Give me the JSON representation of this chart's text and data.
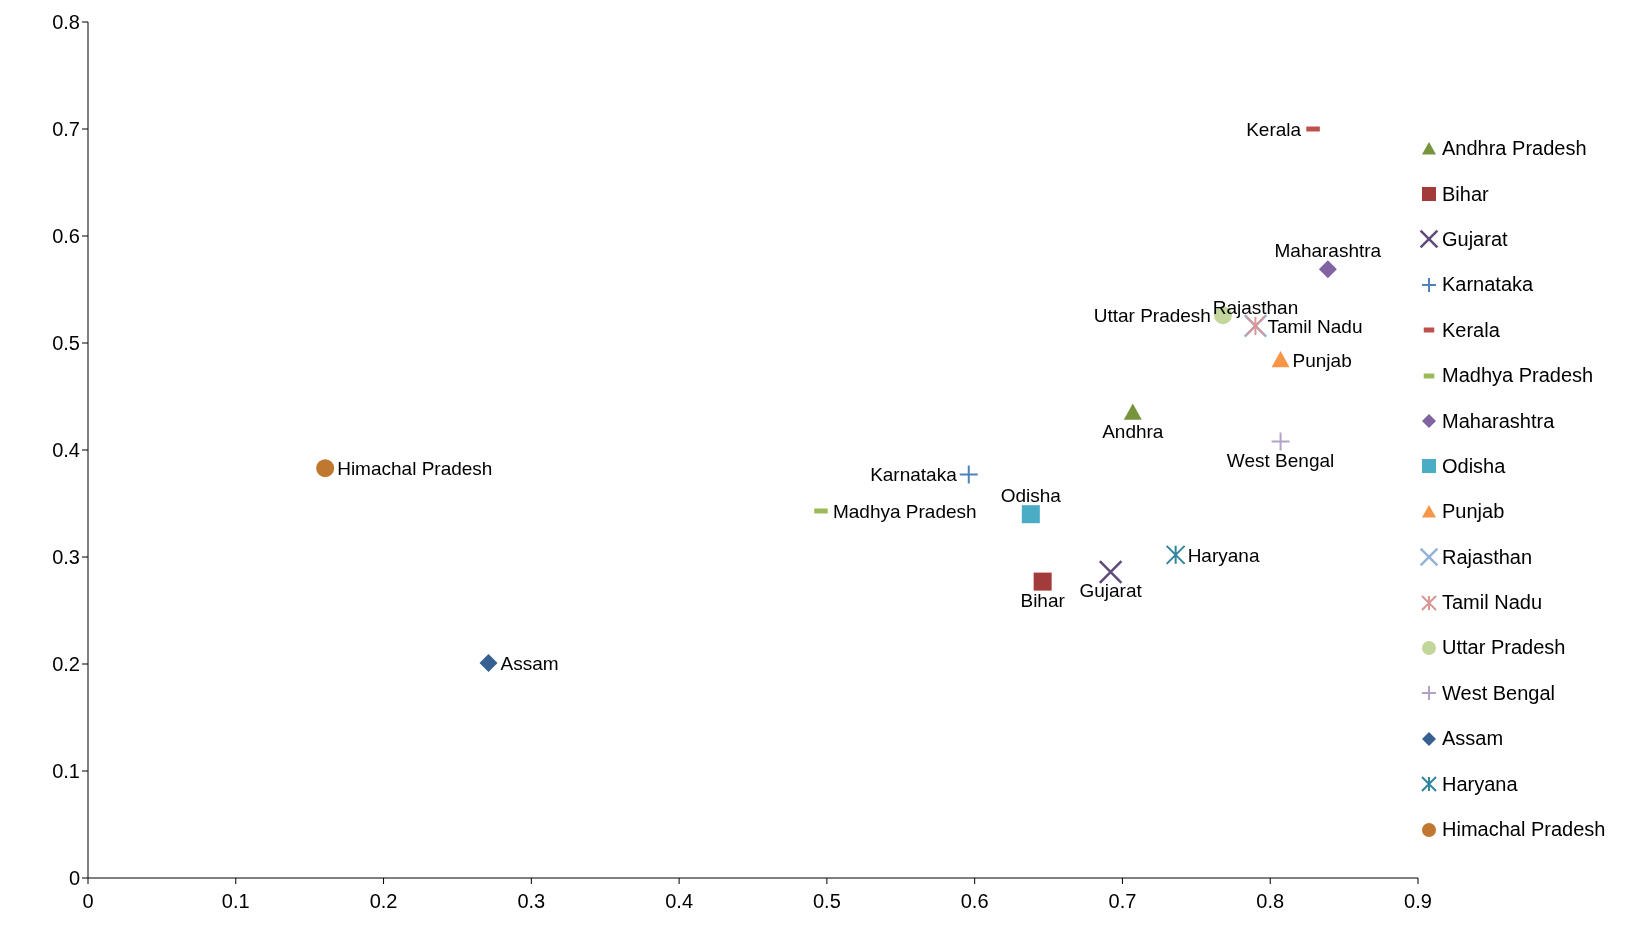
{
  "chart_data": {
    "type": "scatter",
    "xlim": [
      0,
      0.9
    ],
    "xticks": [
      0,
      0.1,
      0.2,
      0.3,
      0.4,
      0.5,
      0.6,
      0.7,
      0.8,
      0.9
    ],
    "ylim": [
      0,
      0.8
    ],
    "yticks": [
      0,
      0.1,
      0.2,
      0.3,
      0.4,
      0.5,
      0.6,
      0.7,
      0.8
    ],
    "grid": false,
    "legend": "right",
    "series": [
      {
        "name": "Andhra Pradesh",
        "color": "#77933c",
        "marker": "triangle",
        "x": [
          0.707
        ],
        "values": [
          0.435
        ]
      },
      {
        "name": "Bihar",
        "color": "#a33b3a",
        "marker": "square",
        "x": [
          0.646
        ],
        "values": [
          0.277
        ]
      },
      {
        "name": "Gujarat",
        "color": "#604a7b",
        "marker": "x",
        "x": [
          0.692
        ],
        "values": [
          0.286
        ]
      },
      {
        "name": "Karnataka",
        "color": "#4f81bd",
        "marker": "plus",
        "x": [
          0.596
        ],
        "values": [
          0.377
        ]
      },
      {
        "name": "Kerala",
        "color": "#c0504d",
        "x": [
          0.829
        ],
        "values": [
          0.7
        ]
      },
      {
        "name": "Madhya Pradesh",
        "color": "#9bbb59",
        "x": [
          0.496
        ],
        "values": [
          0.343
        ]
      },
      {
        "name": "Maharashtra",
        "color": "#8064a2",
        "marker": "diamond",
        "x": [
          0.839
        ],
        "values": [
          0.569
        ]
      },
      {
        "name": "Odisha",
        "color": "#4bacc6",
        "marker": "square",
        "x": [
          0.638
        ],
        "values": [
          0.34
        ]
      },
      {
        "name": "Punjab",
        "color": "#f79646",
        "marker": "triangle",
        "x": [
          0.807
        ],
        "values": [
          0.484
        ]
      },
      {
        "name": "Rajasthan",
        "color": "#95b3d7",
        "marker": "x",
        "x": [
          0.79
        ],
        "values": [
          0.516
        ]
      },
      {
        "name": "Tamil Nadu",
        "color": "#d99694",
        "marker": "cross",
        "x": [
          0.79
        ],
        "values": [
          0.516
        ]
      },
      {
        "name": "Uttar Pradesh",
        "color": "#c3d69b",
        "marker": "circle",
        "x": [
          0.768
        ],
        "values": [
          0.526
        ]
      },
      {
        "name": "West Bengal",
        "color": "#b3a2c7",
        "marker": "plus",
        "x": [
          0.807
        ],
        "values": [
          0.408
        ]
      },
      {
        "name": "Assam",
        "color": "#366092",
        "marker": "diamond",
        "x": [
          0.271
        ],
        "values": [
          0.201
        ]
      },
      {
        "name": "Haryana",
        "color": "#31859c",
        "marker": "cross",
        "x": [
          0.736
        ],
        "values": [
          0.302
        ]
      },
      {
        "name": "Himachal Pradesh",
        "color": "#c0772f",
        "marker": "circle",
        "x": [
          0.1605
        ],
        "values": [
          0.383
        ]
      }
    ],
    "annotations": [
      {
        "text": "Andhra",
        "x": 0.707,
        "y": 0.435
      },
      {
        "text": "Bihar",
        "x": 0.646,
        "y": 0.277
      },
      {
        "text": "Gujarat",
        "x": 0.692,
        "y": 0.286
      },
      {
        "text": "Karnataka",
        "x": 0.596,
        "y": 0.377
      },
      {
        "text": "Kerala",
        "x": 0.829,
        "y": 0.7
      },
      {
        "text": "Madhya Pradesh",
        "x": 0.496,
        "y": 0.343
      },
      {
        "text": "Maharashtra",
        "x": 0.839,
        "y": 0.569
      },
      {
        "text": "Odisha",
        "x": 0.638,
        "y": 0.34
      },
      {
        "text": "Punjab",
        "x": 0.807,
        "y": 0.484
      },
      {
        "text": "Rajasthan",
        "x": 0.79,
        "y": 0.516
      },
      {
        "text": "Tamil Nadu",
        "x": 0.79,
        "y": 0.516
      },
      {
        "text": "Uttar Pradesh",
        "x": 0.768,
        "y": 0.526
      },
      {
        "text": "West Bengal",
        "x": 0.807,
        "y": 0.408
      },
      {
        "text": "Assam",
        "x": 0.271,
        "y": 0.201
      },
      {
        "text": "Haryana",
        "x": 0.736,
        "y": 0.302
      },
      {
        "text": "Himachal Pradesh",
        "x": 0.1605,
        "y": 0.383
      }
    ]
  }
}
